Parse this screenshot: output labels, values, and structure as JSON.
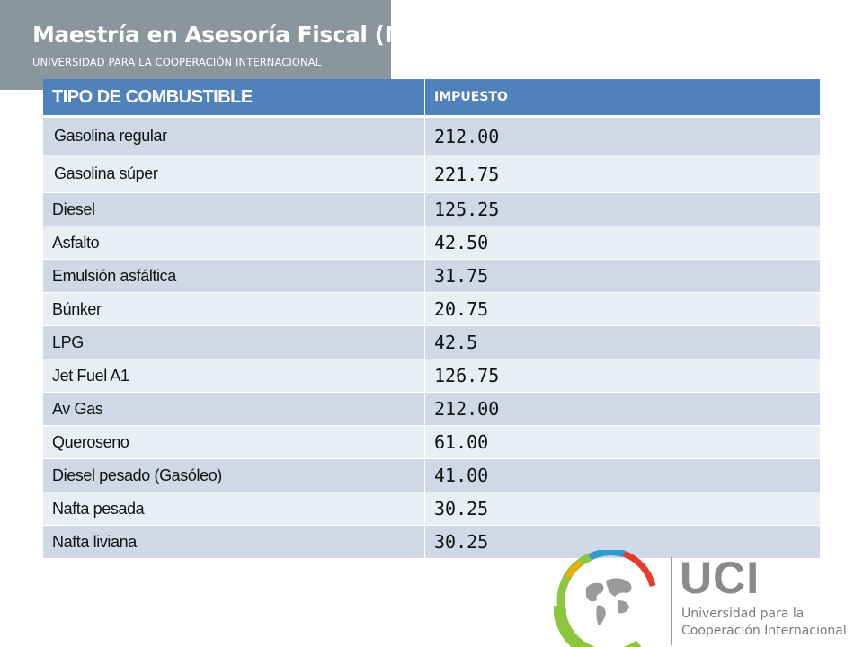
{
  "header": {
    "title": "Maestría en Asesoría Fiscal (MAF).",
    "subtitle": "UNIVERSIDAD PARA LA COOPERACIÓN INTERNACIONAL"
  },
  "table": {
    "columns": [
      "TIPO DE COMBUSTIBLE",
      "IMPUESTO"
    ],
    "rows": [
      {
        "name": "Gasolina regular",
        "value": "212.00"
      },
      {
        "name": "Gasolina súper",
        "value": "221.75"
      },
      {
        "name": "Diesel",
        "value": "125.25"
      },
      {
        "name": "Asfalto",
        "value": "42.50"
      },
      {
        "name": "Emulsión asfáltica",
        "value": "31.75"
      },
      {
        "name": "Búnker",
        "value": "20.75"
      },
      {
        "name": "LPG",
        "value": "42.5"
      },
      {
        "name": "Jet Fuel A1",
        "value": "126.75"
      },
      {
        "name": "Av Gas",
        "value": "212.00"
      },
      {
        "name": "Queroseno",
        "value": "61.00"
      },
      {
        "name": "Diesel pesado (Gasóleo)",
        "value": "41.00"
      },
      {
        "name": "Nafta pesada",
        "value": "30.25"
      },
      {
        "name": "Nafta liviana",
        "value": "30.25"
      }
    ]
  },
  "logo": {
    "letters": "UCI",
    "name_line1": "Universidad para la",
    "name_line2": "Cooperación Internacional"
  },
  "colors": {
    "banner": "#8a969e",
    "header_row": "#4f81bd",
    "row_odd": "#d0d8e8",
    "row_even": "#e9edf4"
  }
}
